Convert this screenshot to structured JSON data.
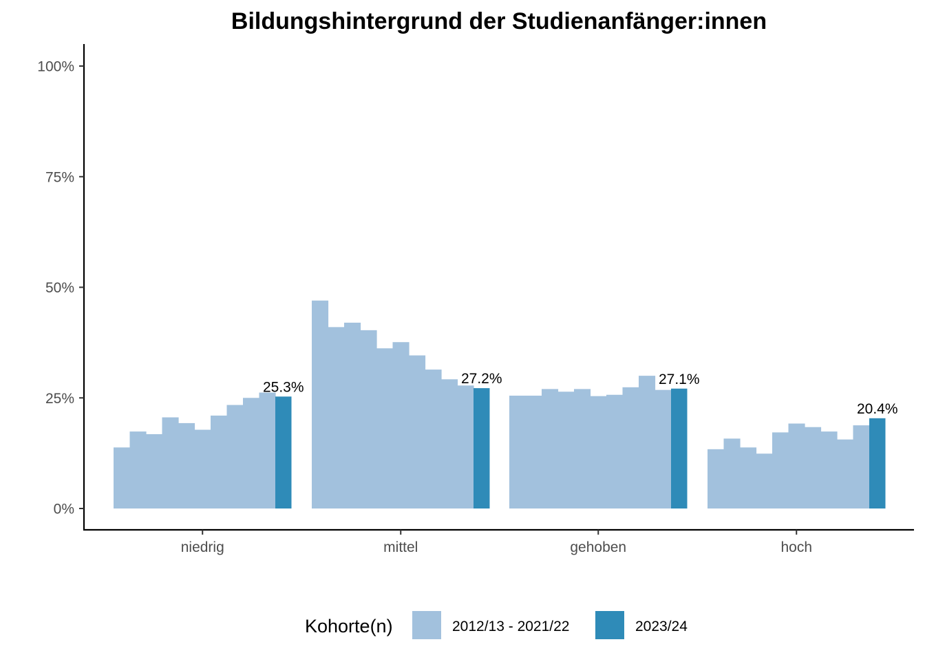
{
  "chart_data": {
    "type": "bar",
    "title": "Bildungshintergrund der Studienanfänger:innen",
    "xlabel": "",
    "ylabel": "",
    "categories": [
      "niedrig",
      "mittel",
      "gehoben",
      "hoch"
    ],
    "y_ticks": [
      "0%",
      "25%",
      "50%",
      "75%",
      "100%"
    ],
    "ylim": [
      0,
      1.05
    ],
    "series": [
      {
        "name": "2012/13 - 2021/22",
        "color": "#a2c1dd",
        "values": [
          [
            0.138,
            0.174,
            0.168,
            0.206,
            0.193,
            0.178,
            0.21,
            0.234,
            0.25,
            0.262
          ],
          [
            0.47,
            0.41,
            0.42,
            0.403,
            0.362,
            0.376,
            0.346,
            0.314,
            0.292,
            0.278
          ],
          [
            0.255,
            0.255,
            0.27,
            0.264,
            0.27,
            0.254,
            0.257,
            0.274,
            0.3,
            0.268
          ],
          [
            0.134,
            0.158,
            0.138,
            0.124,
            0.172,
            0.192,
            0.184,
            0.174,
            0.156,
            0.188
          ]
        ]
      },
      {
        "name": "2023/24",
        "color": "#2f8bb8",
        "values": [
          0.253,
          0.272,
          0.271,
          0.204
        ],
        "labels": [
          "25.3%",
          "27.2%",
          "27.1%",
          "20.4%"
        ]
      }
    ],
    "legend": {
      "title": "Kohorte(n)",
      "position": "bottom",
      "items": [
        "2012/13 - 2021/22",
        "2023/24"
      ]
    },
    "grid": false
  }
}
